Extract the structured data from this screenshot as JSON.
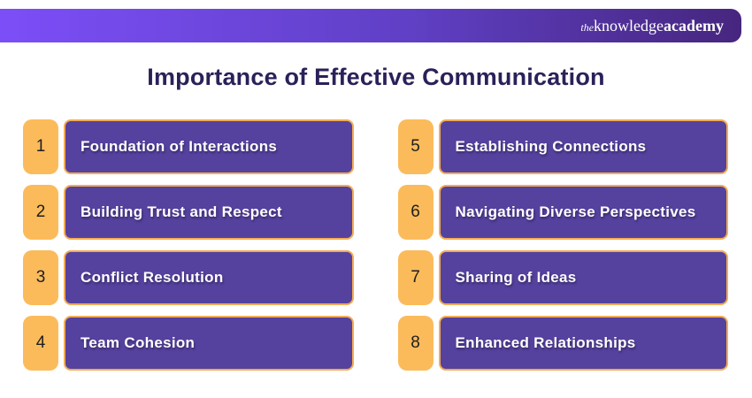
{
  "colors": {
    "header_gradient_start": "#7C4EF8",
    "header_gradient_mid": "#6040C5",
    "header_gradient_end": "#46267E",
    "title": "#2B2159",
    "badge_orange": "#FBBB5B",
    "box_purple": "#55419E",
    "box_border_orange": "#F2AC55",
    "item_text": "#FFFFFF",
    "badge_text": "#1E1E1E",
    "background": "#FFFFFF"
  },
  "header": {
    "logo": {
      "prefix": "the",
      "name": "knowledge",
      "suffix": "academy"
    }
  },
  "title": "Importance of Effective Communication",
  "items": [
    {
      "number": "1",
      "label": "Foundation of Interactions"
    },
    {
      "number": "2",
      "label": "Building Trust and Respect"
    },
    {
      "number": "3",
      "label": "Conflict Resolution"
    },
    {
      "number": "4",
      "label": "Team Cohesion"
    },
    {
      "number": "5",
      "label": "Establishing Connections"
    },
    {
      "number": "6",
      "label": "Navigating Diverse Perspectives"
    },
    {
      "number": "7",
      "label": "Sharing of Ideas"
    },
    {
      "number": "8",
      "label": "Enhanced Relationships"
    }
  ]
}
